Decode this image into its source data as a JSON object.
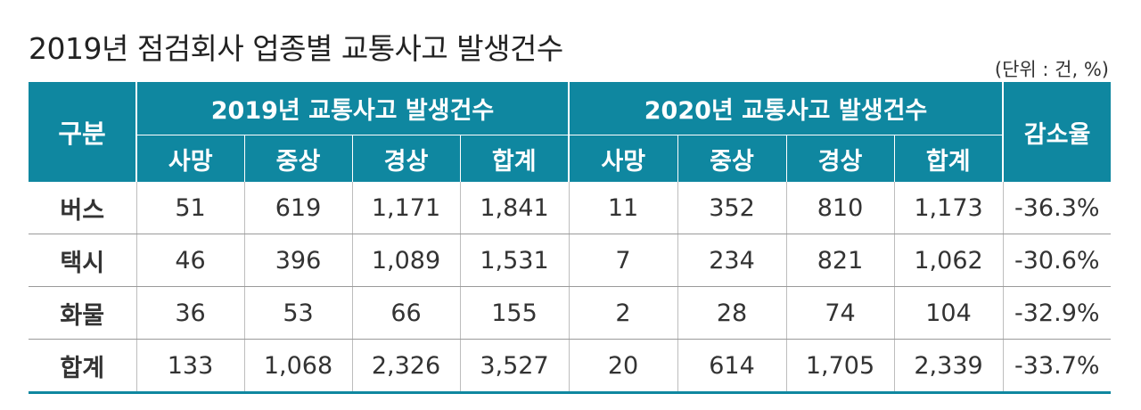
{
  "title": "2019년 점검회사 업종별 교통사고 발생건수",
  "unit_note": "(단위 : 건, %)",
  "table": {
    "row_header": "구분",
    "group_2019": "2019년 교통사고 발생건수",
    "group_2020": "2020년 교통사고 발생건수",
    "decrease_rate": "감소율",
    "sub_headers": [
      "사망",
      "중상",
      "경상",
      "합계"
    ],
    "rows": [
      {
        "label": "버스",
        "values": [
          "51",
          "619",
          "1,171",
          "1,841",
          "11",
          "352",
          "810",
          "1,173",
          "-36.3%"
        ]
      },
      {
        "label": "택시",
        "values": [
          "46",
          "396",
          "1,089",
          "1,531",
          "7",
          "234",
          "821",
          "1,062",
          "-30.6%"
        ]
      },
      {
        "label": "화물",
        "values": [
          "36",
          "53",
          "66",
          "155",
          "2",
          "28",
          "74",
          "104",
          "-32.9%"
        ]
      },
      {
        "label": "합계",
        "values": [
          "133",
          "1,068",
          "2,326",
          "3,527",
          "20",
          "614",
          "1,705",
          "2,339",
          "-33.7%"
        ]
      }
    ]
  },
  "colors": {
    "header_bg": "#0f87a0",
    "row_label": "#0f7f98"
  }
}
